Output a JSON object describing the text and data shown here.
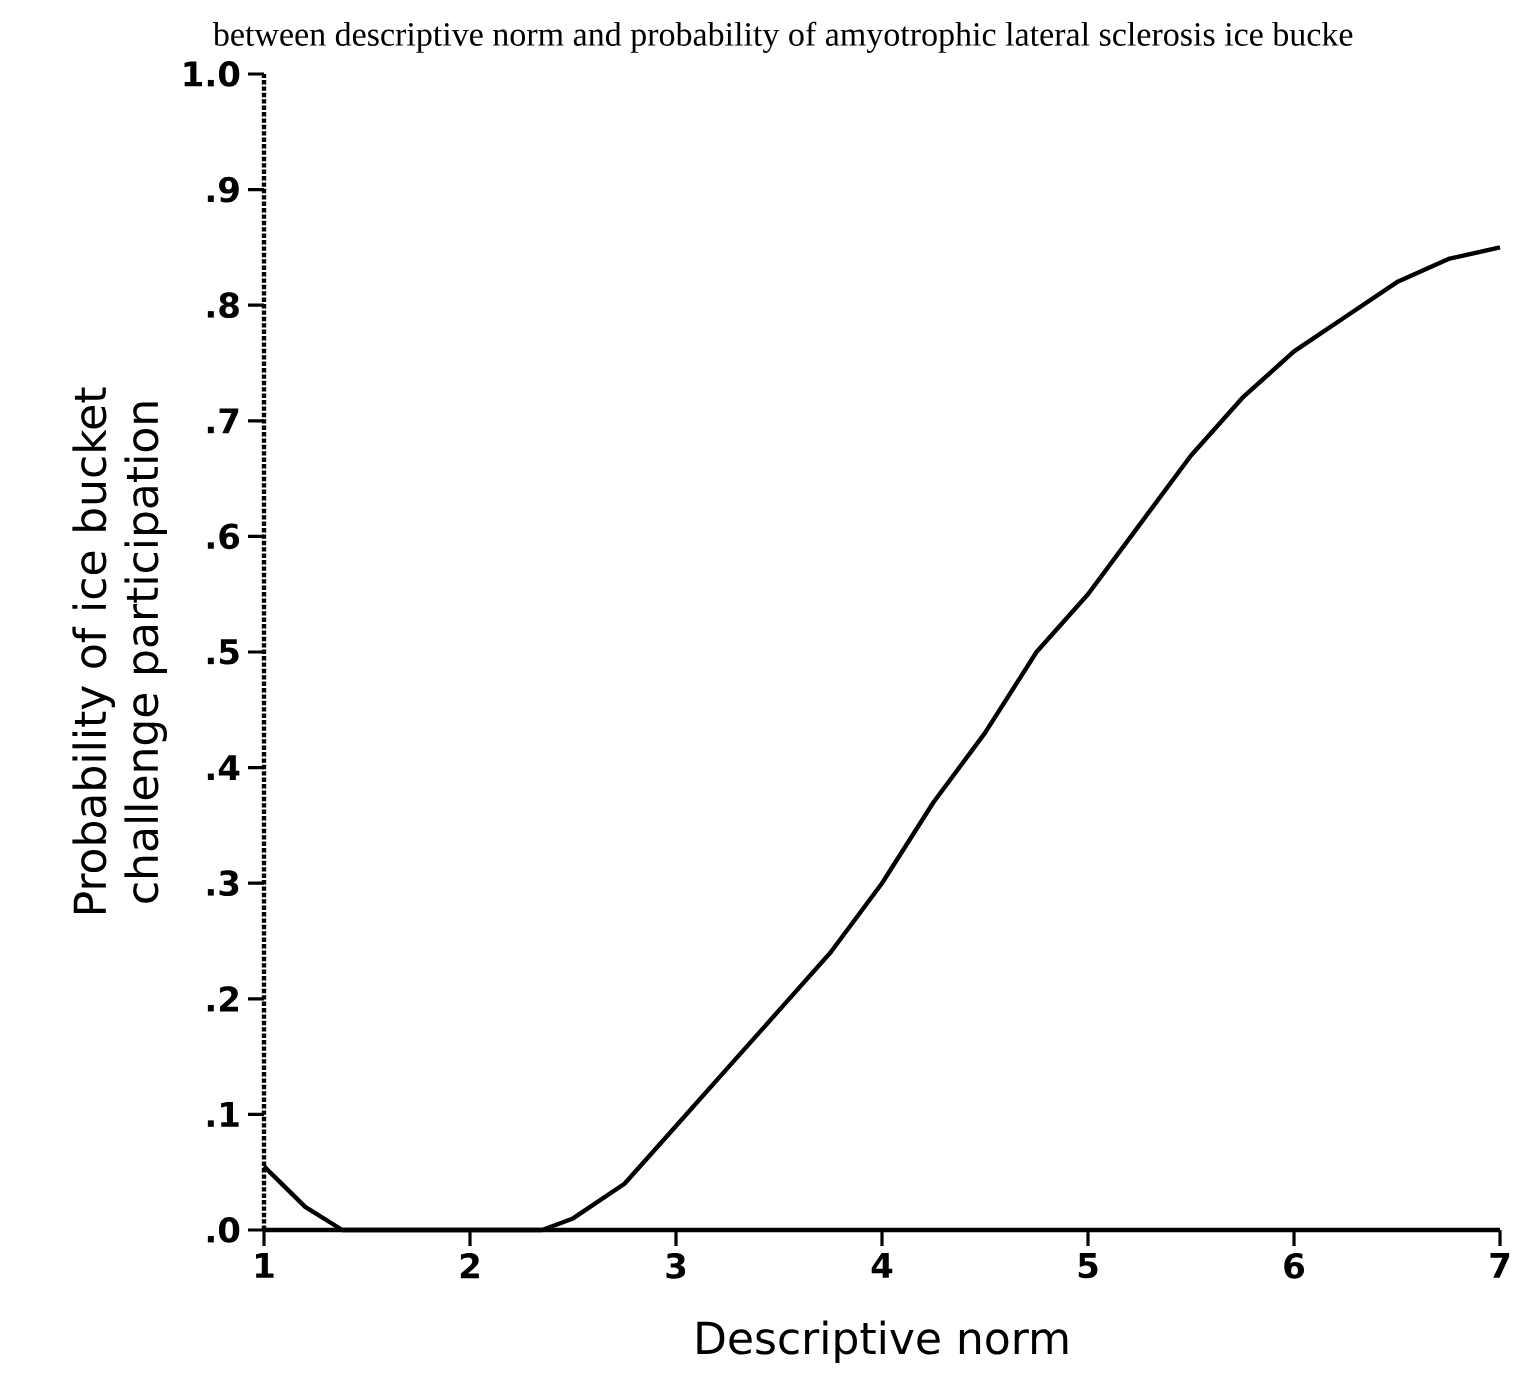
{
  "chart_data": {
    "type": "line",
    "title": "between descriptive norm and probability of amyotrophic lateral sclerosis ice bucke",
    "xlabel": "Descriptive norm",
    "ylabel": "Probability of ice bucket challenge participation",
    "x": [
      1,
      1.2,
      1.38,
      1.8,
      2.35,
      2.5,
      2.75,
      3,
      3.25,
      3.5,
      3.75,
      4,
      4.25,
      4.5,
      4.75,
      5,
      5.25,
      5.5,
      5.75,
      6,
      6.25,
      6.5,
      6.75,
      7
    ],
    "series": [
      {
        "color": "#000000",
        "values": [
          0.055,
          0.02,
          0,
          0,
          0,
          0.01,
          0.04,
          0.09,
          0.14,
          0.19,
          0.24,
          0.3,
          0.37,
          0.43,
          0.5,
          0.55,
          0.61,
          0.67,
          0.72,
          0.76,
          0.79,
          0.82,
          0.84,
          0.85
        ]
      }
    ],
    "xlim": [
      1,
      7
    ],
    "xticks": [
      1,
      2,
      3,
      4,
      5,
      6,
      7
    ],
    "ylim": [
      0,
      1
    ],
    "yticks": [
      {
        "value": 0,
        "label": ".0"
      },
      {
        "value": 0.1,
        "label": ".1"
      },
      {
        "value": 0.2,
        "label": ".2"
      },
      {
        "value": 0.3,
        "label": ".3"
      },
      {
        "value": 0.4,
        "label": ".4"
      },
      {
        "value": 0.5,
        "label": ".5"
      },
      {
        "value": 0.6,
        "label": ".6"
      },
      {
        "value": 0.7,
        "label": ".7"
      },
      {
        "value": 0.8,
        "label": ".8"
      },
      {
        "value": 0.9,
        "label": ".9"
      },
      {
        "value": 1.0,
        "label": "1.0"
      }
    ],
    "grid": false,
    "legend": false,
    "marker": "none",
    "line_style": "solid"
  }
}
